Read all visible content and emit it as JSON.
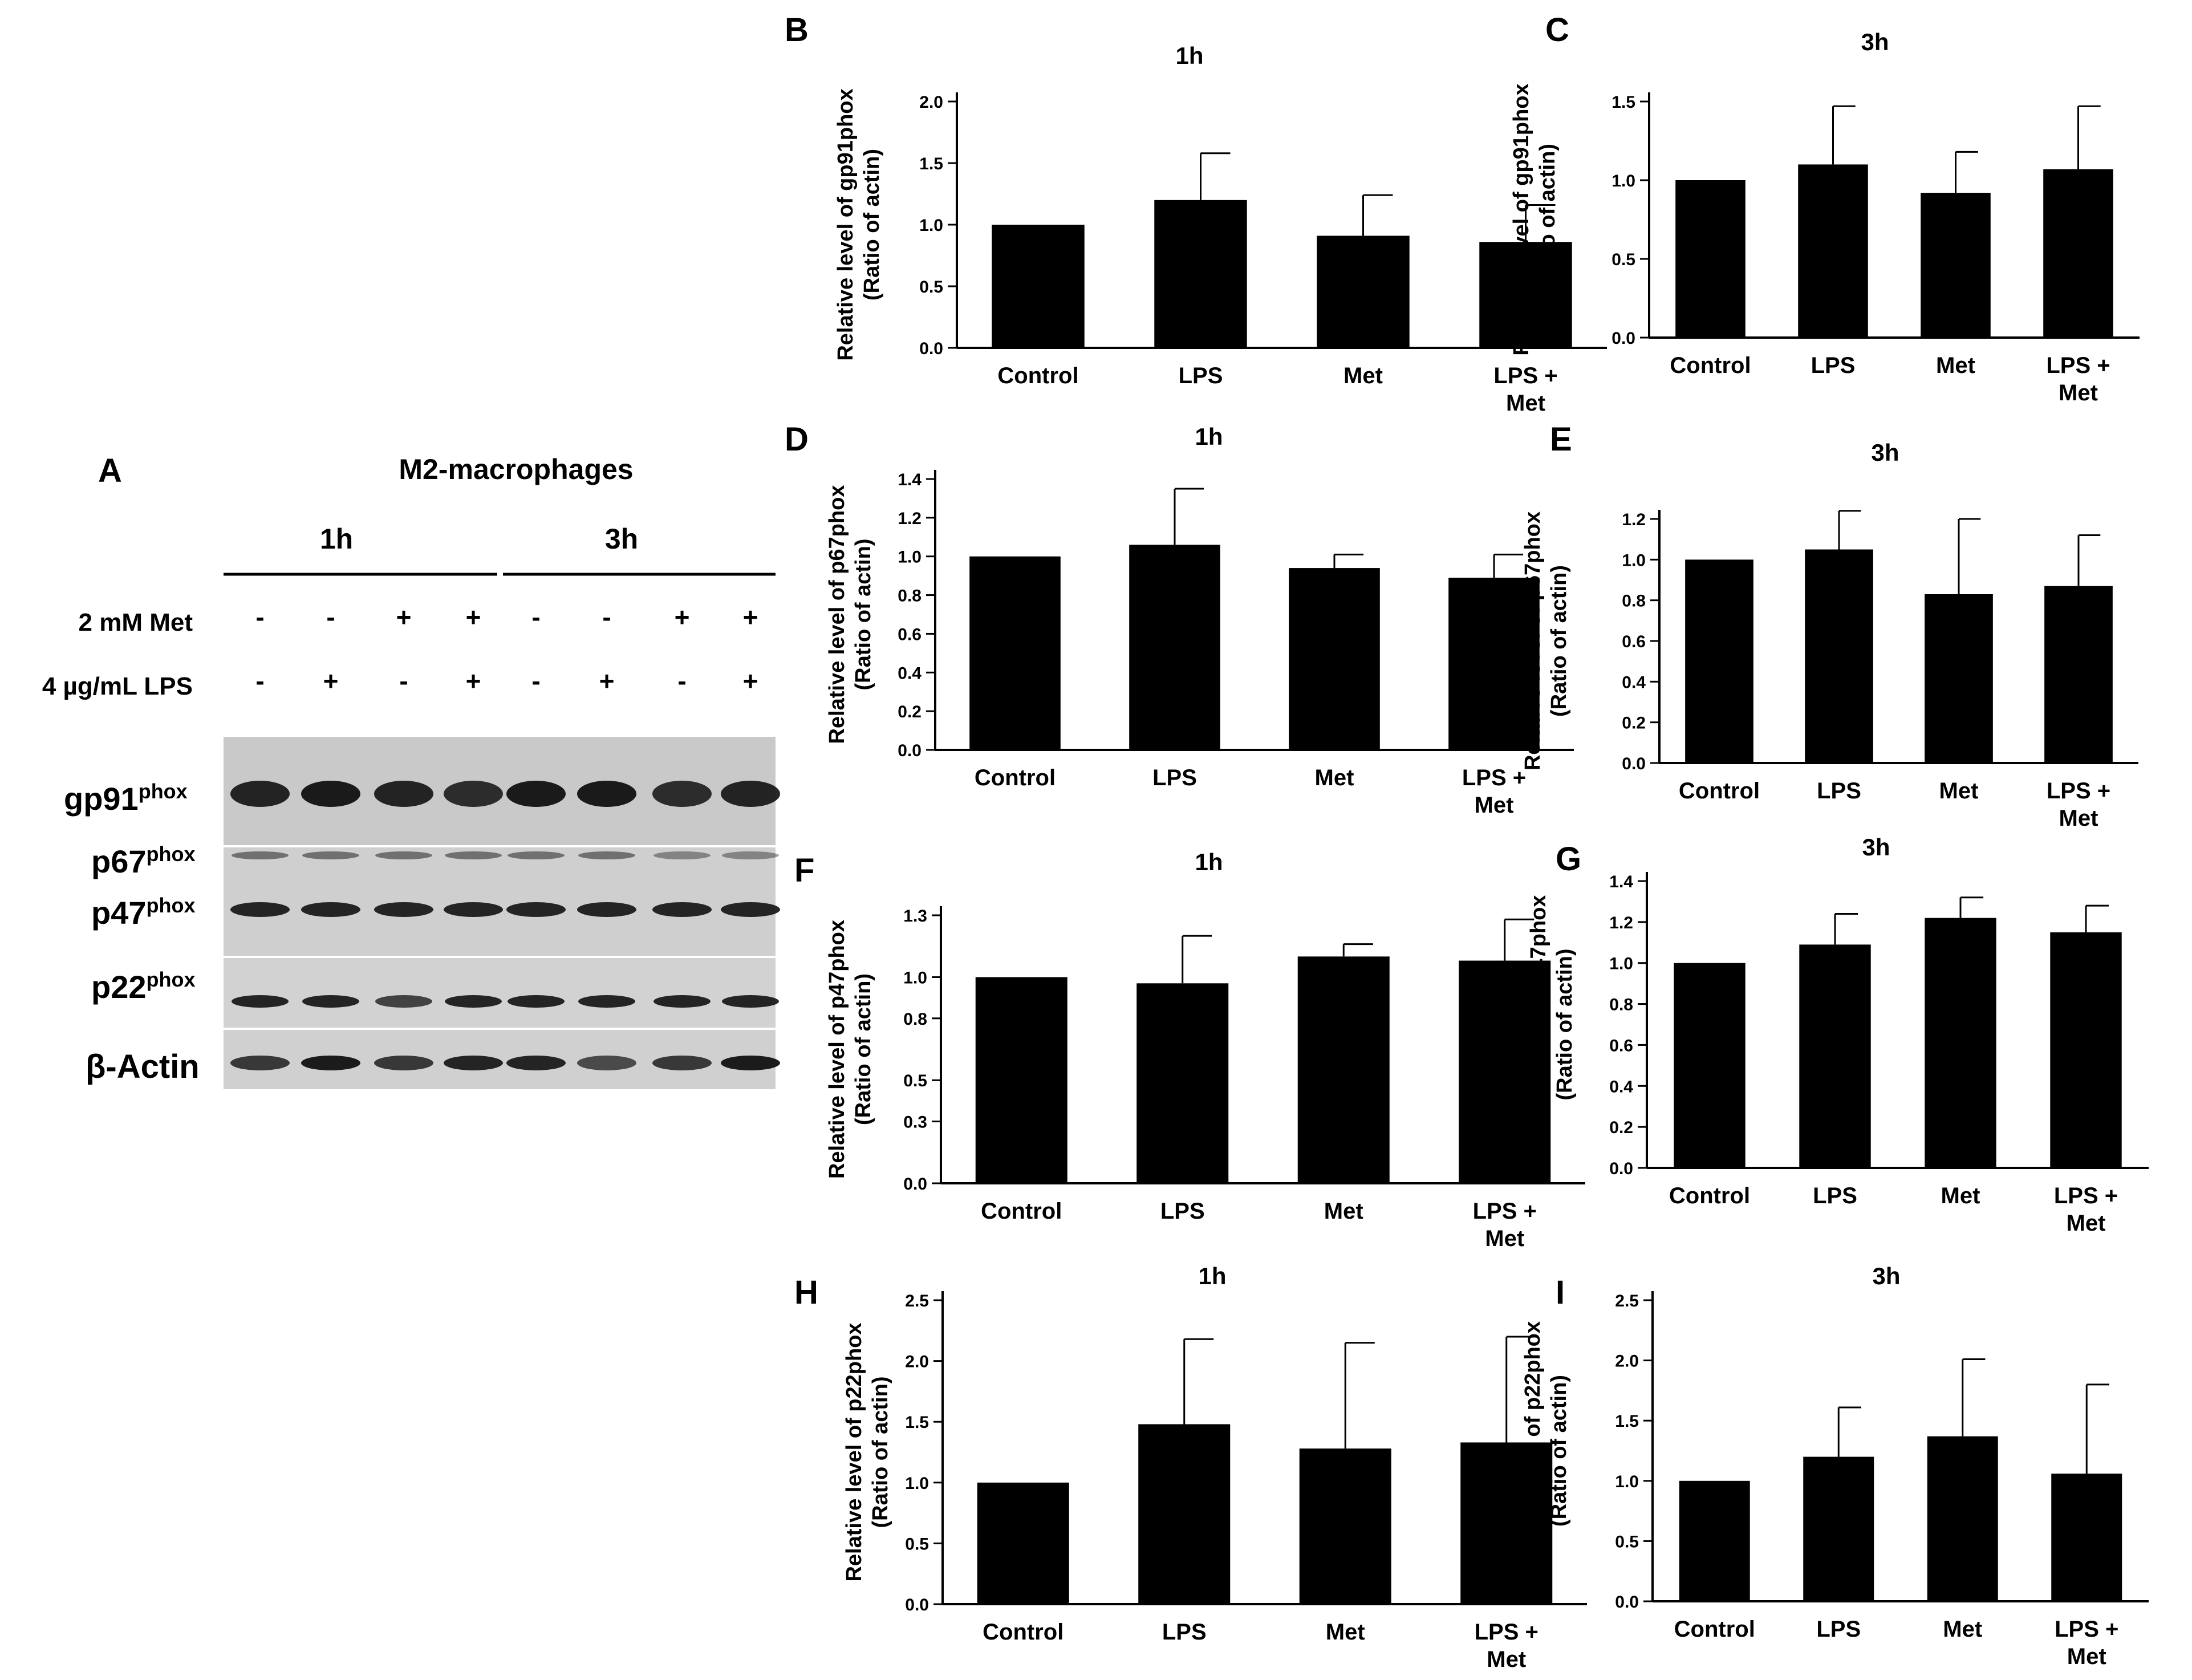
{
  "blot": {
    "panel_letter": "A",
    "title": "M2-macrophages",
    "time_labels": [
      "1h",
      "3h"
    ],
    "treatment_rows": [
      {
        "label": "2 mM Met",
        "signs": [
          "-",
          "-",
          "+",
          "+",
          "-",
          "-",
          "+",
          "+"
        ]
      },
      {
        "label": "4 µg/mL LPS",
        "signs": [
          "-",
          "+",
          "-",
          "+",
          "-",
          "+",
          "-",
          "+"
        ]
      }
    ],
    "protein_labels": [
      {
        "name": "gp91",
        "sup": "phox"
      },
      {
        "name": "p67",
        "sup": "phox"
      },
      {
        "name": "p47",
        "sup": "phox"
      },
      {
        "name": "p22",
        "sup": "phox"
      },
      {
        "name": "β-Actin",
        "sup": ""
      }
    ]
  },
  "chart_data": [
    {
      "panel": "B",
      "type": "bar",
      "title": "1h",
      "ylabel": "Relative level of gp91phox",
      "ylabel2": "(Ratio of actin)",
      "categories": [
        "Control",
        "LPS",
        "Met",
        "LPS +|Met"
      ],
      "values": [
        1.0,
        1.2,
        0.91,
        0.86
      ],
      "errors": [
        0.0,
        0.38,
        0.33,
        0.3
      ],
      "ylim": [
        0,
        2.0
      ],
      "yticks": [
        "0.0",
        "0.5",
        "1.0",
        "1.5",
        "2.0"
      ]
    },
    {
      "panel": "C",
      "type": "bar",
      "title": "3h",
      "ylabel": "Relative level of gp91phox",
      "ylabel2": "(Ratio of actin)",
      "categories": [
        "Control",
        "LPS",
        "Met",
        "LPS +|Met"
      ],
      "values": [
        1.0,
        1.1,
        0.92,
        1.07
      ],
      "errors": [
        0.0,
        0.37,
        0.26,
        0.4
      ],
      "ylim": [
        0,
        1.5
      ],
      "yticks": [
        "0.0",
        "0.5",
        "1.0",
        "1.5"
      ]
    },
    {
      "panel": "D",
      "type": "bar",
      "title": "1h",
      "ylabel": "Relative level of p67phox",
      "ylabel2": "(Ratio of actin)",
      "categories": [
        "Control",
        "LPS",
        "Met",
        "LPS +|Met"
      ],
      "values": [
        1.0,
        1.06,
        0.94,
        0.89
      ],
      "errors": [
        0.0,
        0.29,
        0.07,
        0.12
      ],
      "ylim": [
        0,
        1.4
      ],
      "yticks": [
        "0.0",
        "0.2",
        "0.4",
        "0.6",
        "0.8",
        "1.0",
        "1.2",
        "1.4"
      ]
    },
    {
      "panel": "E",
      "type": "bar",
      "title": "3h",
      "ylabel": "Relative level of p67phox",
      "ylabel2": "(Ratio of actin)",
      "categories": [
        "Control",
        "LPS",
        "Met",
        "LPS +|Met"
      ],
      "values": [
        1.0,
        1.05,
        0.83,
        0.87
      ],
      "errors": [
        0.0,
        0.19,
        0.37,
        0.25
      ],
      "ylim": [
        0,
        1.2
      ],
      "yticks": [
        "0.0",
        "0.2",
        "0.4",
        "0.6",
        "0.8",
        "1.0",
        "1.2"
      ]
    },
    {
      "panel": "F",
      "type": "bar",
      "title": "1h",
      "ylabel": "Relative level of p47phox",
      "ylabel2": "(Ratio of actin)",
      "categories": [
        "Control",
        "LPS",
        "Met",
        "LPS +|Met"
      ],
      "values": [
        1.0,
        0.97,
        1.1,
        1.08
      ],
      "errors": [
        0.0,
        0.23,
        0.06,
        0.2
      ],
      "ylim": [
        0,
        1.3
      ],
      "yticks": [
        "0.0",
        "0.3",
        "0.5",
        "0.8",
        "1.0",
        "1.3"
      ]
    },
    {
      "panel": "G",
      "type": "bar",
      "title": "3h",
      "ylabel": "Relative level of p47phox",
      "ylabel2": "(Ratio of actin)",
      "categories": [
        "Control",
        "LPS",
        "Met",
        "LPS +|Met"
      ],
      "values": [
        1.0,
        1.09,
        1.22,
        1.15
      ],
      "errors": [
        0.0,
        0.15,
        0.1,
        0.13
      ],
      "ylim": [
        0,
        1.4
      ],
      "yticks": [
        "0.0",
        "0.2",
        "0.4",
        "0.6",
        "0.8",
        "1.0",
        "1.2",
        "1.4"
      ]
    },
    {
      "panel": "H",
      "type": "bar",
      "title": "1h",
      "ylabel": "Relative level of p22phox",
      "ylabel2": "(Ratio of actin)",
      "categories": [
        "Control",
        "LPS",
        "Met",
        "LPS +|Met"
      ],
      "values": [
        1.0,
        1.48,
        1.28,
        1.33
      ],
      "errors": [
        0.0,
        0.7,
        0.87,
        0.87
      ],
      "ylim": [
        0,
        2.5
      ],
      "yticks": [
        "0.0",
        "0.5",
        "1.0",
        "1.5",
        "2.0",
        "2.5"
      ]
    },
    {
      "panel": "I",
      "type": "bar",
      "title": "3h",
      "ylabel": "Relative level of p22phox",
      "ylabel2": "(Ratio of actin)",
      "categories": [
        "Control",
        "LPS",
        "Met",
        "LPS +|Met"
      ],
      "values": [
        1.0,
        1.2,
        1.37,
        1.06
      ],
      "errors": [
        0.0,
        0.41,
        0.64,
        0.74
      ],
      "ylim": [
        0,
        2.5
      ],
      "yticks": [
        "0.0",
        "0.5",
        "1.0",
        "1.5",
        "2.0",
        "2.5"
      ]
    }
  ]
}
